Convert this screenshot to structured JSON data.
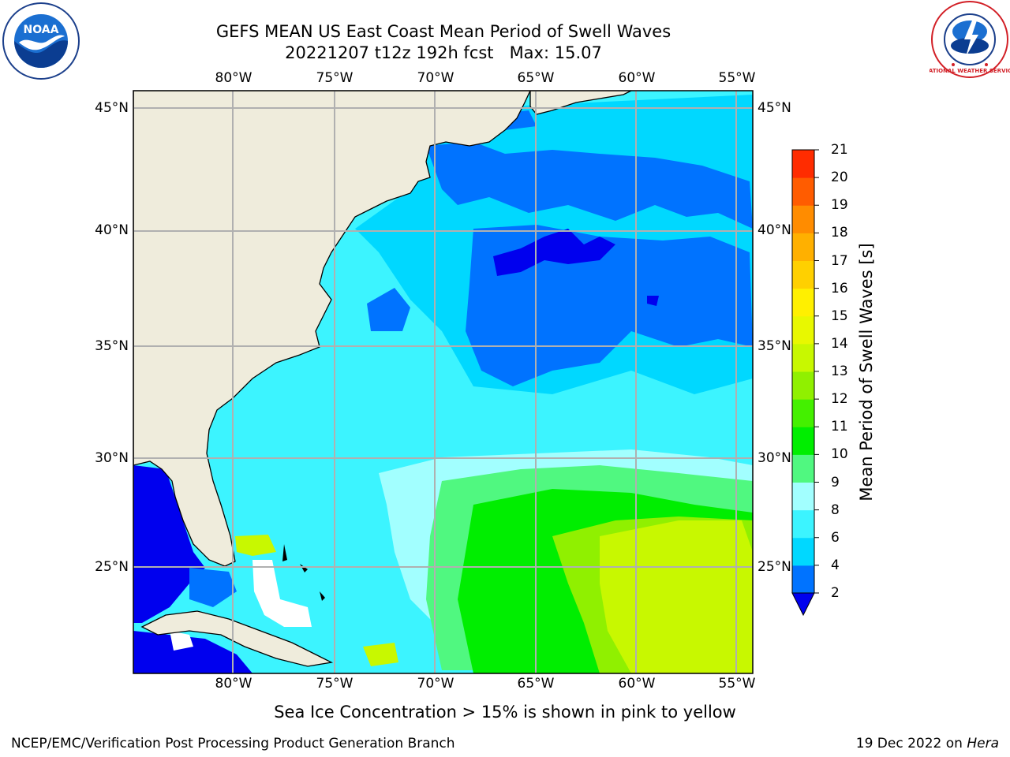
{
  "header": {
    "title_line1": "GEFS MEAN US East Coast Mean Period of Swell Waves",
    "title_line2": "20221207 t12z 192h fcst   Max: 15.07"
  },
  "map": {
    "lon_ticks": [
      "80°W",
      "75°W",
      "70°W",
      "65°W",
      "60°W",
      "55°W"
    ],
    "lat_ticks": [
      "45°N",
      "40°N",
      "35°N",
      "30°N",
      "25°N"
    ],
    "lon_range": [
      -85,
      -54
    ],
    "lat_range": [
      20.5,
      46
    ],
    "land_color": "#efecdc",
    "grid": true
  },
  "colorbar": {
    "label": "Mean Period of Swell Waves [s]",
    "ticks": [
      "2",
      "4",
      "6",
      "8",
      "9",
      "10",
      "11",
      "12",
      "13",
      "14",
      "15",
      "16",
      "17",
      "18",
      "19",
      "20",
      "21"
    ],
    "levels": [
      2,
      4,
      6,
      8,
      9,
      10,
      11,
      12,
      13,
      14,
      15,
      16,
      17,
      18,
      19,
      20,
      21
    ],
    "colors": [
      "#0073ff",
      "#00d8ff",
      "#3cf4ff",
      "#a2ffff",
      "#50f880",
      "#00ee00",
      "#44f000",
      "#90f000",
      "#c8f800",
      "#e8f800",
      "#fff000",
      "#ffd000",
      "#ffb000",
      "#ff8c00",
      "#ff5c00",
      "#ff2c00",
      "#ff0000"
    ],
    "under_color": "#0000ee",
    "extend": "min"
  },
  "caption": "Sea Ice Concentration > 15% is shown in pink to yellow",
  "footer": {
    "left": "NCEP/EMC/Verification Post Processing Product Generation Branch",
    "right_date": "19 Dec 2022 on ",
    "right_host": "Hera"
  },
  "logos": {
    "noaa_text": "NOAA",
    "nws_text": "NATIONAL WEATHER SERVICE"
  }
}
